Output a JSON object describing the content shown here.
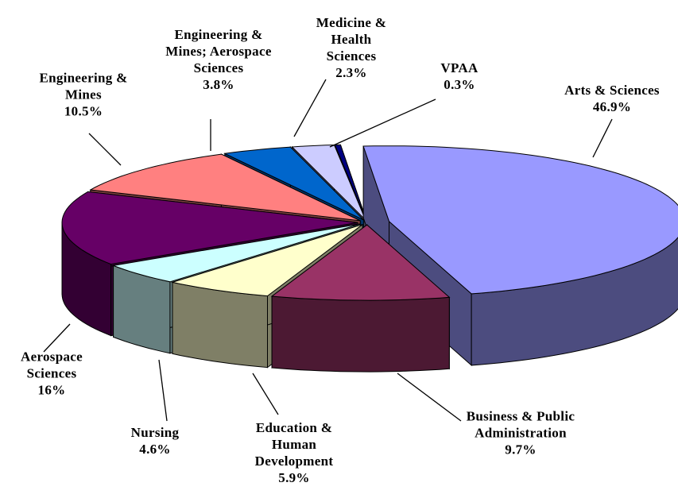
{
  "chart_data": {
    "type": "pie3d",
    "categories": [
      "Arts & Sciences",
      "Business & Public Administration",
      "Education & Human Development",
      "Nursing",
      "Aerospace Sciences",
      "Engineering & Mines",
      "Engineering & Mines; Aerospace Sciences",
      "Medicine & Health Sciences",
      "VPAA"
    ],
    "values": [
      46.9,
      9.7,
      5.9,
      4.6,
      16,
      10.5,
      3.8,
      2.3,
      0.3
    ],
    "value_labels": [
      "46.9%",
      "9.7%",
      "5.9%",
      "4.6%",
      "16%",
      "10.5%",
      "3.8%",
      "2.3%",
      "0.3%"
    ],
    "colors": [
      "#9999ff",
      "#993366",
      "#ffffcc",
      "#ccffff",
      "#660066",
      "#ff8080",
      "#0066cc",
      "#ccccff",
      "#000080"
    ]
  }
}
